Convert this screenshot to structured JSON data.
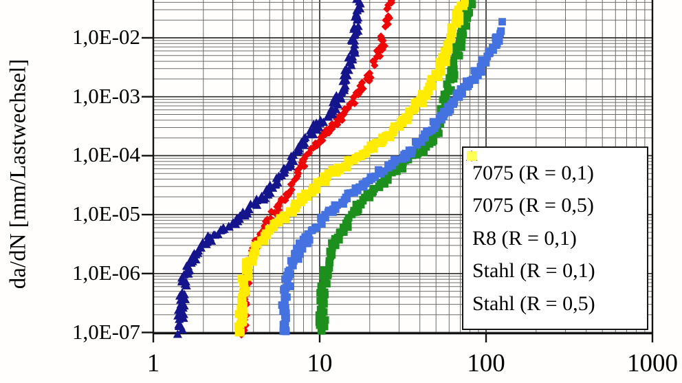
{
  "y_axis": {
    "label": "da/dN [mm/Lastwechsel]",
    "scale": "log",
    "ticks": [
      {
        "label": "1,0E-02",
        "exp": -2
      },
      {
        "label": "1,0E-03",
        "exp": -3
      },
      {
        "label": "1,0E-04",
        "exp": -4
      },
      {
        "label": "1,0E-05",
        "exp": -5
      },
      {
        "label": "1,0E-06",
        "exp": -6
      },
      {
        "label": "1,0E-07",
        "exp": -7
      }
    ]
  },
  "x_axis": {
    "label": "",
    "scale": "log",
    "ticks": [
      {
        "label": "1",
        "value": 1
      },
      {
        "label": "10",
        "value": 10
      },
      {
        "label": "100",
        "value": 100
      },
      {
        "label": "1000",
        "value": 1000
      }
    ]
  },
  "legend": {
    "items": [
      {
        "label": "7075 (R = 0,1)",
        "marker": "diamond",
        "color": "#e00404"
      },
      {
        "label": "7075 (R = 0,5)",
        "marker": "triangle",
        "color": "#14148c"
      },
      {
        "label": "R8 (R = 0,1)",
        "marker": "square",
        "color": "#1d8f1d"
      },
      {
        "label": "Stahl (R = 0,1)",
        "marker": "square",
        "color": "#4472e0"
      },
      {
        "label": "Stahl (R = 0,5)",
        "marker": "square",
        "color": "#ffff55"
      }
    ]
  },
  "chart_data": {
    "type": "scatter",
    "x_scale": "log",
    "y_scale": "log",
    "xlim": [
      1,
      1000
    ],
    "ylim": [
      1e-07,
      0.045
    ],
    "grid": "both, log minor and major gridlines",
    "legend_position": "lower right inside plot",
    "ylabel": "da/dN [mm/Lastwechsel]",
    "xlabel": "",
    "series": [
      {
        "name": "7075 (R = 0,1)",
        "marker": "diamond",
        "color": "#ee0505",
        "points": [
          [
            3.5,
            1e-07
          ],
          [
            3.55,
            4e-07
          ],
          [
            3.65,
            1e-06
          ],
          [
            3.9,
            2.2e-06
          ],
          [
            4.35,
            4e-06
          ],
          [
            4.9,
            7e-06
          ],
          [
            5.5,
            1.2e-05
          ],
          [
            6.3,
            2.2e-05
          ],
          [
            7.2,
            4.5e-05
          ],
          [
            8.2,
            9e-05
          ],
          [
            9.6,
            0.00017
          ],
          [
            12,
            0.00032
          ],
          [
            14.5,
            0.0006
          ],
          [
            17,
            0.0011
          ],
          [
            19.5,
            0.002
          ],
          [
            22,
            0.0042
          ],
          [
            24,
            0.0085
          ],
          [
            25.5,
            0.017
          ],
          [
            26.8,
            0.045
          ]
        ],
        "gaps": [
          [
            0.0027,
            0.0035
          ],
          [
            0.0105,
            0.0155
          ],
          [
            0.022,
            0.029
          ]
        ]
      },
      {
        "name": "7075 (R = 0,5)",
        "marker": "triangle",
        "color": "#14148c",
        "points": [
          [
            1.45,
            1e-07
          ],
          [
            1.48,
            3e-07
          ],
          [
            1.55,
            9e-07
          ],
          [
            1.75,
            2e-06
          ],
          [
            2.2,
            4e-06
          ],
          [
            3.0,
            7e-06
          ],
          [
            3.9,
            1.3e-05
          ],
          [
            4.6,
            2e-05
          ],
          [
            5.6,
            4e-05
          ],
          [
            6.6,
            8e-05
          ],
          [
            7.8,
            0.00016
          ],
          [
            9.2,
            0.00028
          ],
          [
            11,
            0.00045
          ],
          [
            12.5,
            0.00075
          ],
          [
            13.8,
            0.0015
          ],
          [
            15,
            0.0035
          ],
          [
            16,
            0.008
          ],
          [
            16.8,
            0.02
          ],
          [
            17.4,
            0.045
          ]
        ],
        "gaps": [
          [
            0.0235,
            0.0275
          ]
        ]
      },
      {
        "name": "R8 (R = 0,1)",
        "marker": "square",
        "color": "#1d8f1d",
        "points": [
          [
            10.3,
            1e-07
          ],
          [
            10.4,
            4e-07
          ],
          [
            10.8,
            1e-06
          ],
          [
            11.6,
            2.2e-06
          ],
          [
            13,
            4.5e-06
          ],
          [
            15,
            8e-06
          ],
          [
            17.5,
            1.5e-05
          ],
          [
            21,
            2.6e-05
          ],
          [
            26,
            4.6e-05
          ],
          [
            33,
            8e-05
          ],
          [
            42,
            0.00013
          ],
          [
            49,
            0.00022
          ],
          [
            53,
            0.0004
          ],
          [
            56,
            0.0007
          ],
          [
            59,
            0.0013
          ],
          [
            63,
            0.0026
          ],
          [
            67,
            0.0055
          ],
          [
            71,
            0.011
          ],
          [
            76,
            0.022
          ],
          [
            82,
            0.046
          ]
        ],
        "gaps": []
      },
      {
        "name": "Stahl (R = 0,1)",
        "marker": "square",
        "color": "#4472e0",
        "points": [
          [
            6.1,
            1e-07
          ],
          [
            6.2,
            4e-07
          ],
          [
            6.5,
            1e-06
          ],
          [
            7.3,
            2.2e-06
          ],
          [
            8.6,
            4.5e-06
          ],
          [
            10.5,
            8e-06
          ],
          [
            13,
            1.5e-05
          ],
          [
            17,
            2.8e-05
          ],
          [
            22,
            4.6e-05
          ],
          [
            28,
            7.5e-05
          ],
          [
            35,
            0.00012
          ],
          [
            42,
            0.0002
          ],
          [
            50,
            0.00035
          ],
          [
            58,
            0.0006
          ],
          [
            68,
            0.001
          ],
          [
            80,
            0.0018
          ],
          [
            93,
            0.0032
          ],
          [
            105,
            0.0055
          ],
          [
            115,
            0.009
          ],
          [
            122,
            0.013
          ],
          [
            127,
            0.017
          ],
          [
            131,
            0.021
          ]
        ],
        "gaps": [
          [
            0.0135,
            0.0185
          ]
        ]
      },
      {
        "name": "Stahl (R = 0,5)",
        "marker": "square",
        "color": "#ffec00",
        "points": [
          [
            3.35,
            1e-07
          ],
          [
            3.45,
            5e-07
          ],
          [
            3.6,
            1.2e-06
          ],
          [
            4.1,
            2.8e-06
          ],
          [
            5.2,
            6e-06
          ],
          [
            6.8,
            1.2e-05
          ],
          [
            8.5,
            2.3e-05
          ],
          [
            11,
            4.4e-05
          ],
          [
            15,
            7.8e-05
          ],
          [
            20,
            0.00013
          ],
          [
            26,
            0.00023
          ],
          [
            33,
            0.00043
          ],
          [
            40,
            0.0008
          ],
          [
            47,
            0.0016
          ],
          [
            54,
            0.0034
          ],
          [
            60,
            0.0075
          ],
          [
            65,
            0.016
          ],
          [
            70,
            0.032
          ],
          [
            73,
            0.046
          ]
        ],
        "gaps": []
      }
    ]
  }
}
